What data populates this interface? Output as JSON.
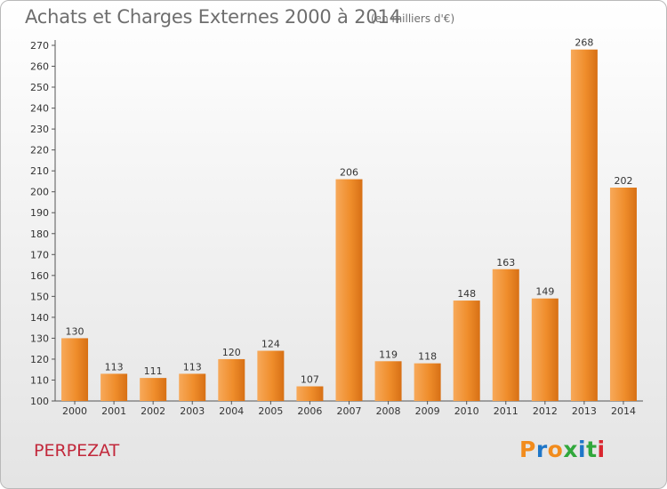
{
  "title": "Achats et Charges Externes 2000 à 2014",
  "unit": "(en milliers d'€)",
  "town": "PERPEZAT",
  "logo": {
    "text": "Proxiti",
    "letters": [
      "P",
      "r",
      "o",
      "x",
      "i",
      "t",
      "i"
    ],
    "colors": [
      "#f28c1d",
      "#1e76c8",
      "#f28c1d",
      "#31a83c",
      "#1e76c8",
      "#31a83c",
      "#d9262f"
    ]
  },
  "colors": {
    "bar": "#ef8d2b",
    "bar_light": "#f7a95a",
    "bar_dark": "#d77015",
    "town": "#c2283b",
    "title": "#6e6e6e"
  },
  "chart_data": {
    "type": "bar",
    "title": "Achats et Charges Externes 2000 à 2014",
    "subtitle": "(en milliers d'€)",
    "categories": [
      "2000",
      "2001",
      "2002",
      "2003",
      "2004",
      "2005",
      "2006",
      "2007",
      "2008",
      "2009",
      "2010",
      "2011",
      "2012",
      "2013",
      "2014"
    ],
    "values": [
      130,
      113,
      111,
      113,
      120,
      124,
      107,
      206,
      119,
      118,
      148,
      163,
      149,
      268,
      202
    ],
    "ylim": [
      100,
      270
    ],
    "yticks": [
      100,
      110,
      120,
      130,
      140,
      150,
      160,
      170,
      180,
      190,
      200,
      210,
      220,
      230,
      240,
      250,
      260,
      270
    ],
    "grid": false,
    "xlabel": "",
    "ylabel": ""
  }
}
